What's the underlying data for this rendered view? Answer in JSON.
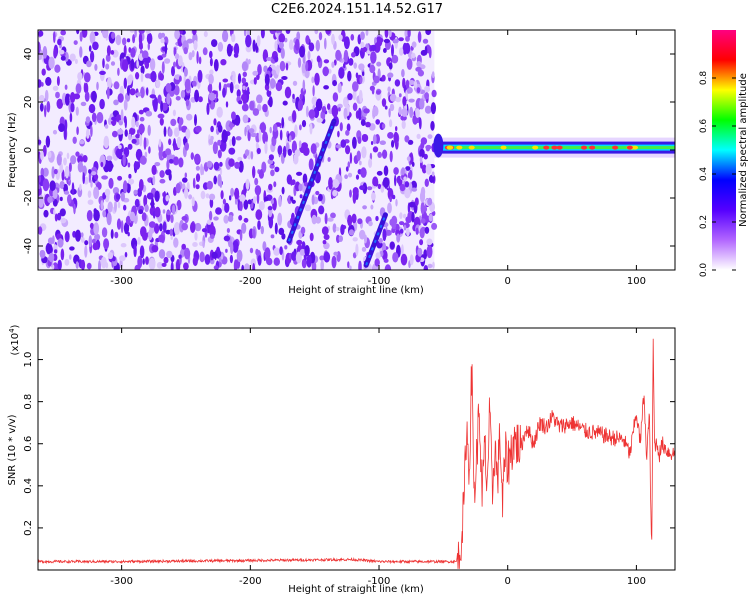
{
  "title": "C2E6.2024.151.14.52.G17",
  "chart_data": [
    {
      "type": "heatmap",
      "name": "spectrogram",
      "xlabel": "Height of straight line (km)",
      "ylabel": "Frequency (Hz)",
      "xlim": [
        -365,
        130
      ],
      "ylim": [
        -50,
        50
      ],
      "xticks": [
        -300,
        -200,
        -100,
        0,
        100
      ],
      "yticks": [
        -40,
        -20,
        0,
        20,
        40
      ],
      "noise_region_x": [
        -365,
        -57
      ],
      "tone_track": {
        "frequency": 1,
        "x_range": [
          -57,
          130
        ]
      },
      "streaks": [
        {
          "x": [
            -170,
            -135
          ],
          "y": [
            -38,
            12
          ]
        },
        {
          "x": [
            -110,
            -95
          ],
          "y": [
            -48,
            -27
          ]
        }
      ],
      "colorbar": {
        "label": "Normalized spectral amplitude",
        "ticks": [
          0.0,
          0.2,
          0.4,
          0.6,
          0.8
        ],
        "range": [
          0,
          1
        ],
        "colormap": [
          "#ffffff",
          "#b266ff",
          "#5500ff",
          "#0000ff",
          "#00ffff",
          "#00ff00",
          "#ffff00",
          "#ff0000",
          "#ff0080"
        ]
      }
    },
    {
      "type": "line",
      "name": "snr",
      "xlabel": "Height of straight line (km)",
      "ylabel": "SNR (10 * v/v)",
      "multiplier": "(x10",
      "multiplier_exp": "4",
      "multiplier_close": ")",
      "xlim": [
        -365,
        130
      ],
      "ylim": [
        0,
        1.15
      ],
      "xticks": [
        -300,
        -200,
        -100,
        0,
        100
      ],
      "yticks": [
        0.2,
        0.4,
        0.6,
        0.8,
        1.0
      ],
      "series": [
        {
          "color": "#ee3333",
          "x": [
            -365,
            -300,
            -200,
            -120,
            -100,
            -50,
            -38,
            -34,
            -32,
            -30,
            -28,
            -26,
            -24,
            -22,
            -20,
            -18,
            -16,
            -14,
            -12,
            -10,
            -8,
            -6,
            -4,
            -2,
            0,
            5,
            10,
            15,
            20,
            25,
            30,
            35,
            40,
            50,
            60,
            70,
            80,
            90,
            95,
            100,
            103,
            106,
            108,
            110,
            111,
            112,
            113,
            114,
            116,
            118,
            120,
            125,
            130
          ],
          "values": [
            0.04,
            0.04,
            0.045,
            0.05,
            0.04,
            0.04,
            0.04,
            0.3,
            0.7,
            0.45,
            0.96,
            0.35,
            0.55,
            0.78,
            0.3,
            0.6,
            0.4,
            0.75,
            0.35,
            0.6,
            0.42,
            0.65,
            0.3,
            0.55,
            0.5,
            0.62,
            0.58,
            0.68,
            0.6,
            0.7,
            0.68,
            0.73,
            0.68,
            0.7,
            0.66,
            0.65,
            0.63,
            0.62,
            0.55,
            0.75,
            0.6,
            0.85,
            0.5,
            0.78,
            0.35,
            0.1,
            1.12,
            0.6,
            0.6,
            0.55,
            0.6,
            0.56,
            0.55
          ]
        }
      ]
    }
  ]
}
